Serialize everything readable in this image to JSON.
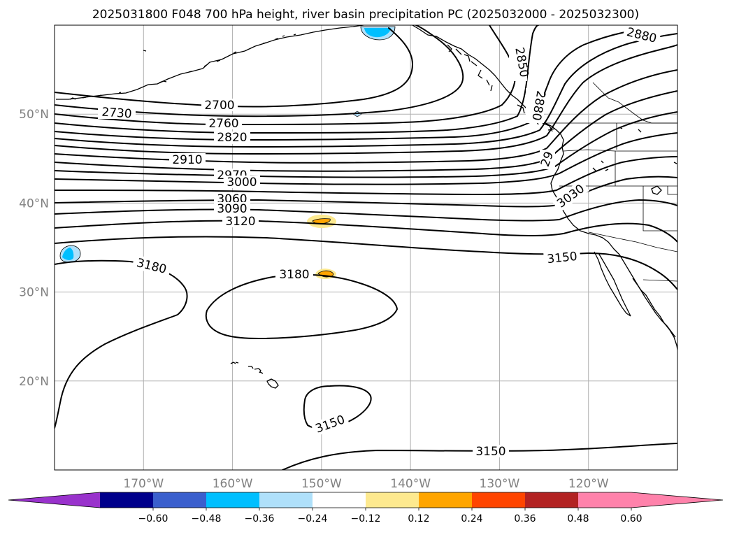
{
  "title": "2025031800 F048 700 hPa height, river basin precipitation PC (2025032000 - 2025032300)",
  "map": {
    "lon_range": [
      -180,
      -110
    ],
    "lat_range": [
      10,
      60
    ],
    "lon_ticks": [
      {
        "lon": -170,
        "label": "170°W"
      },
      {
        "lon": -160,
        "label": "160°W"
      },
      {
        "lon": -150,
        "label": "150°W"
      },
      {
        "lon": -140,
        "label": "140°W"
      },
      {
        "lon": -130,
        "label": "130°W"
      },
      {
        "lon": -120,
        "label": "120°W"
      }
    ],
    "lat_ticks": [
      {
        "lat": 20,
        "label": "20°N"
      },
      {
        "lat": 30,
        "label": "30°N"
      },
      {
        "lat": 40,
        "label": "40°N"
      },
      {
        "lat": 50,
        "label": "50°N"
      }
    ],
    "grid": true,
    "contour_color": "#000000",
    "contour_labels": [
      "2700",
      "2730",
      "2760",
      "2820",
      "2850",
      "2880",
      "2880",
      "2910",
      "2970",
      "3000",
      "3030",
      "3060",
      "3090",
      "3120",
      "3150",
      "3150",
      "3150",
      "3180",
      "3180",
      "29"
    ],
    "shaded_features": [
      {
        "name": "gulf-of-alaska-negative",
        "color": "#00bfff"
      },
      {
        "name": "dateline-negative",
        "color": "#00bfff"
      },
      {
        "name": "north-pacific-small-negative",
        "color": "#add8f5"
      },
      {
        "name": "positive-near-150w-38n",
        "color": "#fde98f"
      },
      {
        "name": "positive-near-150w-32n",
        "color": "#ffa500"
      }
    ]
  },
  "colorbar": {
    "extend": "both",
    "colors": [
      "#9932cc",
      "#00008b",
      "#3a5fcd",
      "#00bfff",
      "#afe0fa",
      "#ffffff",
      "#fde98f",
      "#ffa500",
      "#ff4500",
      "#b22222",
      "#ff82ab",
      "#ff82ab"
    ],
    "ticks": [
      "−0.60",
      "−0.48",
      "−0.36",
      "−0.24",
      "−0.12",
      "0.12",
      "0.24",
      "0.36",
      "0.48",
      "0.60"
    ]
  }
}
